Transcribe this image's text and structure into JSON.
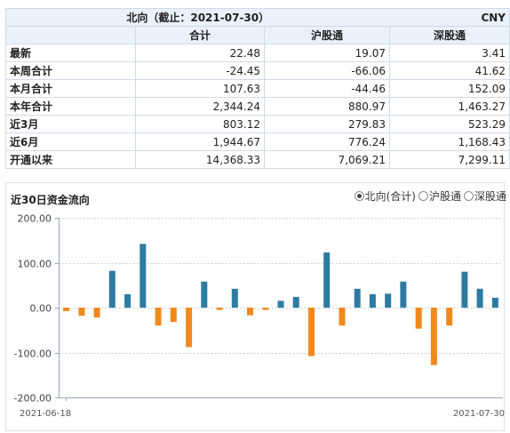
{
  "table": {
    "title": "北向（截止：2021-07-30）",
    "currency": "CNY",
    "headers": [
      "合计",
      "沪股通",
      "深股通"
    ],
    "rows": [
      {
        "label": "最新",
        "values": [
          "22.48",
          "19.07",
          "3.41"
        ]
      },
      {
        "label": "本周合计",
        "values": [
          "-24.45",
          "-66.06",
          "41.62"
        ]
      },
      {
        "label": "本月合计",
        "values": [
          "107.63",
          "-44.46",
          "152.09"
        ]
      },
      {
        "label": "本年合计",
        "values": [
          "2,344.24",
          "880.97",
          "1,463.27"
        ]
      },
      {
        "label": "近3月",
        "values": [
          "803.12",
          "279.83",
          "523.29"
        ]
      },
      {
        "label": "近6月",
        "values": [
          "1,944.67",
          "776.24",
          "1,168.43"
        ]
      },
      {
        "label": "开通以来",
        "values": [
          "14,368.33",
          "7,069.21",
          "7,299.11"
        ]
      }
    ]
  },
  "chart_panel": {
    "title": "近30日资金流向",
    "legend": [
      {
        "label": "北向(合计)",
        "selected": true
      },
      {
        "label": "沪股通",
        "selected": false
      },
      {
        "label": "深股通",
        "selected": false
      }
    ]
  },
  "colors": {
    "positive": "#2e7ba2",
    "negative": "#f0891c",
    "grid": "#c9d4e2",
    "axis": "#9aa7b5"
  },
  "chart_data": {
    "type": "bar",
    "x_start_label": "2021-06-18",
    "x_end_label": "2021-07-30",
    "values": [
      -8,
      -18,
      -22,
      82,
      30,
      142,
      -40,
      -32,
      -88,
      58,
      -5,
      42,
      -17,
      -5,
      15,
      24,
      -108,
      123,
      -40,
      42,
      30,
      31,
      58,
      -47,
      -128,
      -40,
      80,
      42,
      22
    ],
    "ylim": [
      -200,
      200
    ],
    "yticks": [
      200,
      100,
      0,
      -100,
      -200
    ],
    "ytick_labels": [
      "200.00",
      "100.00",
      "0.00",
      "-100.00",
      "-200.00"
    ],
    "grid": true
  }
}
